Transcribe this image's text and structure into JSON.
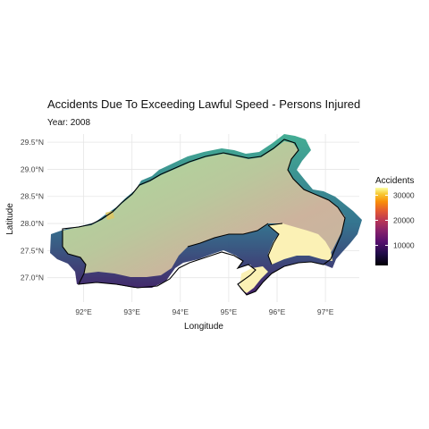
{
  "chart_data": {
    "type": "map",
    "title": "Accidents Due To Exceeding Lawful Speed - Persons Injured",
    "subtitle": "Year: 2008",
    "xlabel": "Longitude",
    "ylabel": "Latitude",
    "x_ticks": [
      {
        "value": 92,
        "label": "92°E"
      },
      {
        "value": 93,
        "label": "93°E"
      },
      {
        "value": 94,
        "label": "94°E"
      },
      {
        "value": 95,
        "label": "95°E"
      },
      {
        "value": 96,
        "label": "96°E"
      },
      {
        "value": 97,
        "label": "97°E"
      }
    ],
    "y_ticks": [
      {
        "value": 27.0,
        "label": "27.0°N"
      },
      {
        "value": 27.5,
        "label": "27.5°N"
      },
      {
        "value": 28.0,
        "label": "28.0°N"
      },
      {
        "value": 28.5,
        "label": "28.5°N"
      },
      {
        "value": 29.0,
        "label": "29.0°N"
      },
      {
        "value": 29.5,
        "label": "29.5°N"
      }
    ],
    "xlim": [
      91.25,
      97.7
    ],
    "ylim": [
      26.55,
      29.65
    ],
    "grid": true,
    "legend": {
      "title": "Accidents",
      "position": "right",
      "colormap": "inferno",
      "range": [
        2000,
        33000
      ],
      "ticks": [
        {
          "value": 10000,
          "label": "10000"
        },
        {
          "value": 20000,
          "label": "20000"
        },
        {
          "value": 30000,
          "label": "30000"
        }
      ]
    },
    "colors": {
      "terrain_low": "#a6d99a",
      "terrain_high": "#c9b39a",
      "region_highlight": "#fdf5b8",
      "edge_teal": "#35a08f",
      "edge_purple": "#3b1660",
      "border": "#000000"
    }
  }
}
